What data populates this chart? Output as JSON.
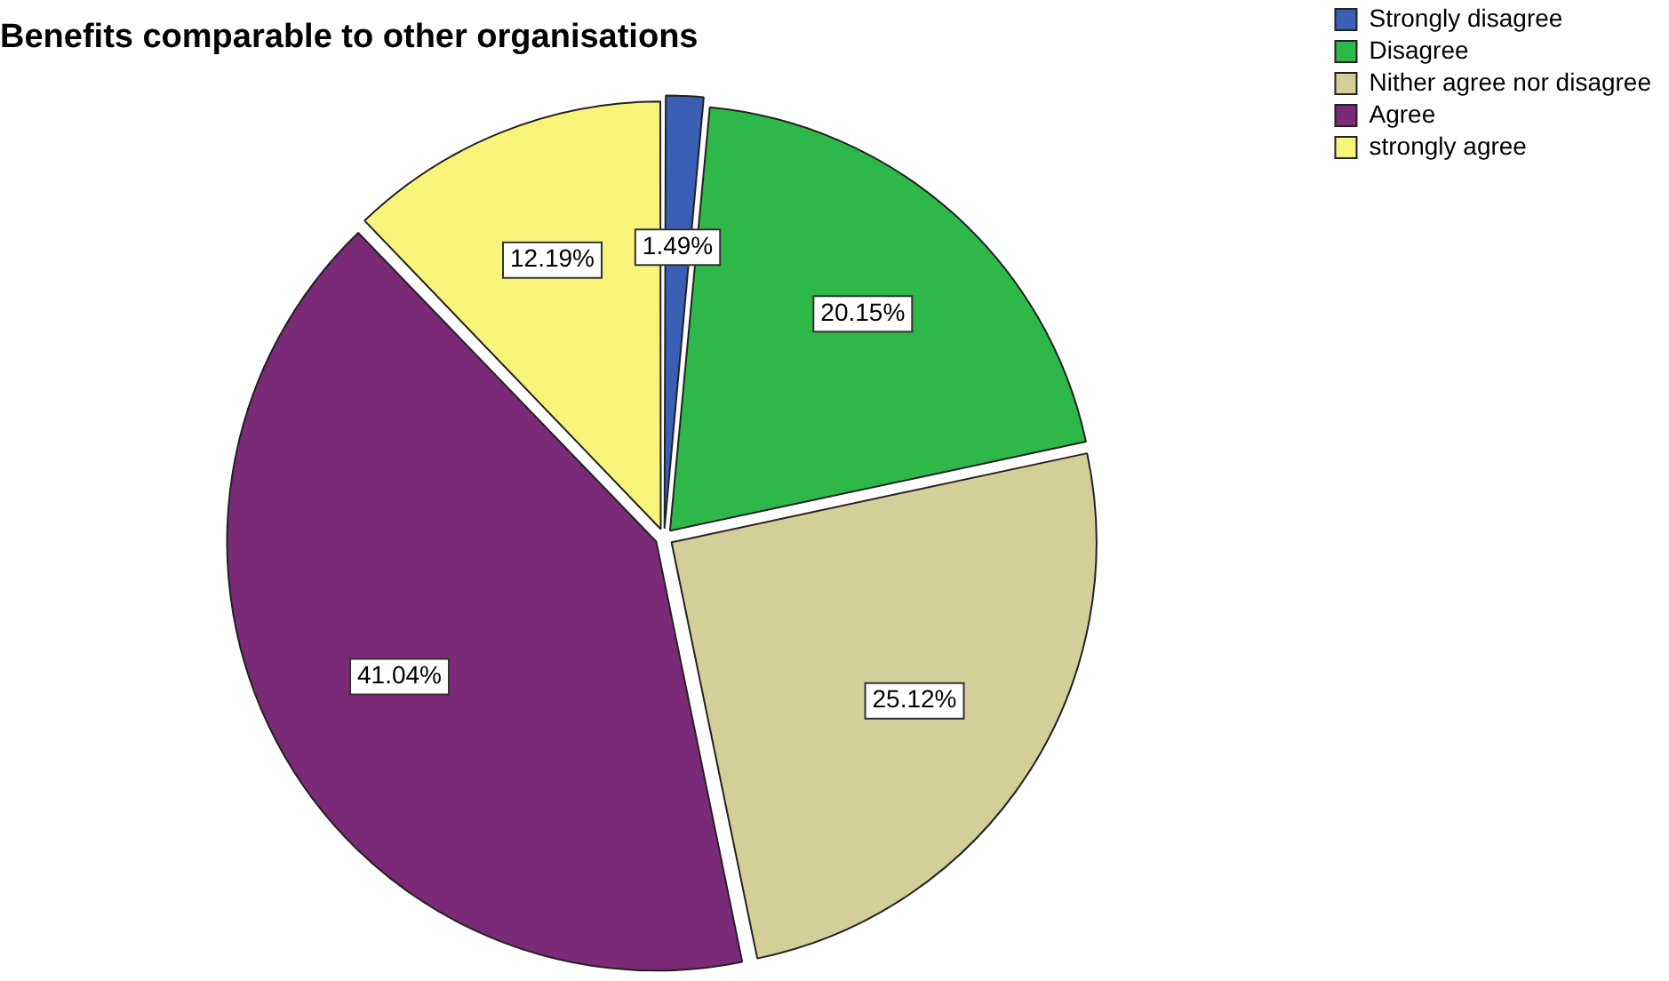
{
  "chart_data": {
    "type": "pie",
    "title": "Benefits comparable to other organisations",
    "categories": [
      "Strongly disagree",
      "Disagree",
      "Nither agree nor disagree",
      "Agree",
      "strongly agree"
    ],
    "values": [
      1.49,
      20.15,
      25.12,
      41.04,
      12.19
    ],
    "value_labels": [
      "1.49%",
      "20.15%",
      "25.12%",
      "41.04%",
      "12.19%"
    ],
    "colors": [
      "#3a5fb4",
      "#2fb84a",
      "#d4cf98",
      "#7b2a78",
      "#f8f47a"
    ],
    "legend": "top right"
  }
}
